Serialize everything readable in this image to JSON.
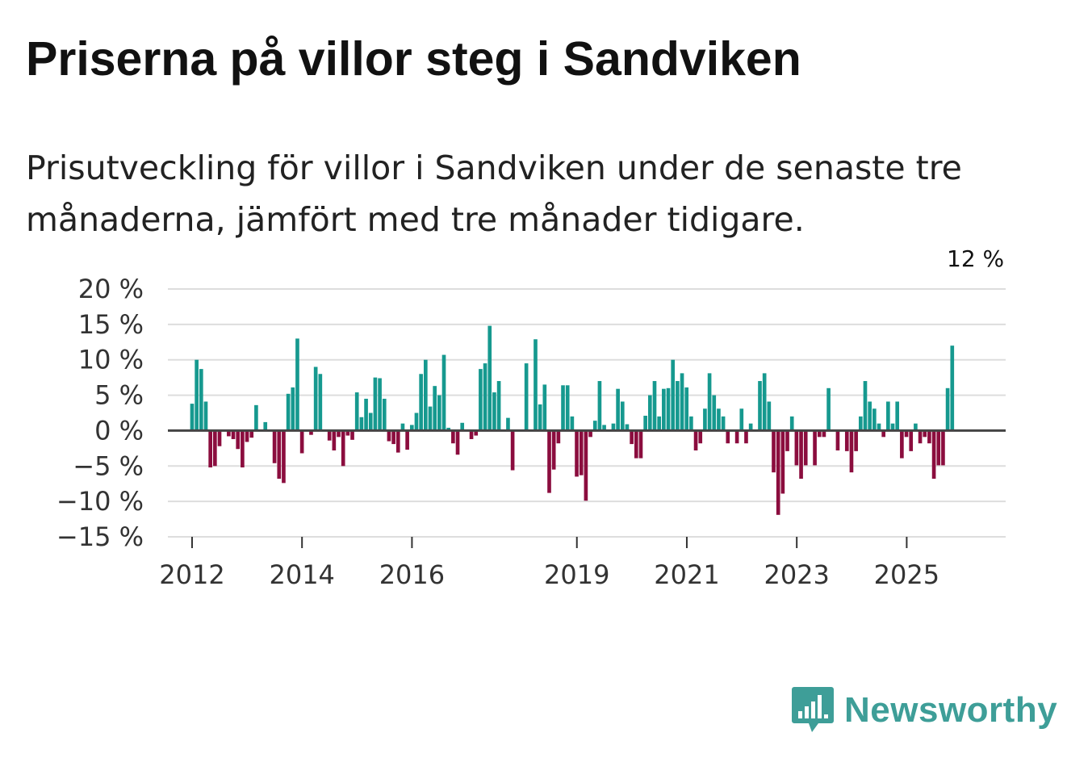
{
  "title": "Priserna på villor steg i Sandviken",
  "subtitle": "Prisutveckling för villor i Sandviken under de senaste tre månaderna, jämfört med tre månader tidigare.",
  "brand": {
    "name": "Newsworthy",
    "color": "#3e9e98",
    "icon": "bar-chart-speech-bubble-icon"
  },
  "colors": {
    "positive": "#16998f",
    "negative": "#8b0d3e",
    "grid": "#dddddd",
    "zero": "#444444"
  },
  "chart_data": {
    "type": "bar",
    "title": "Priserna på villor steg i Sandviken",
    "xlabel": "",
    "ylabel": "",
    "ylim": [
      -15,
      20
    ],
    "yticks": [
      20,
      15,
      10,
      5,
      0,
      -5,
      -10,
      -15
    ],
    "ytick_labels": [
      "20 %",
      "15 %",
      "10 %",
      "5 %",
      "0 %",
      "−5 %",
      "−10 %",
      "−15 %"
    ],
    "xlim": [
      2011.56,
      2026.8
    ],
    "xticks": [
      2012,
      2014,
      2016,
      2019,
      2021,
      2023,
      2025
    ],
    "xtick_labels": [
      "2012",
      "2014",
      "2016",
      "2019",
      "2021",
      "2023",
      "2025"
    ],
    "start": 2012.0,
    "step": 0.0833,
    "annotation": {
      "index": 171,
      "text": "12 %"
    },
    "values": [
      3.8,
      10.0,
      8.7,
      4.1,
      -5.2,
      -5.0,
      -2.2,
      0,
      -0.8,
      -1.2,
      -2.6,
      -5.2,
      -1.6,
      -1.0,
      3.6,
      0,
      1.2,
      0,
      -4.6,
      -6.8,
      -7.4,
      5.2,
      6.1,
      13.0,
      -3.2,
      0,
      -0.6,
      9.0,
      8.0,
      0,
      -1.4,
      -2.8,
      -0.9,
      -5.0,
      -0.7,
      -1.3,
      5.4,
      1.9,
      4.5,
      2.5,
      7.5,
      7.4,
      4.5,
      -1.5,
      -1.9,
      -3.1,
      1.0,
      -2.7,
      0.8,
      2.5,
      8.0,
      10.0,
      3.4,
      6.3,
      5.0,
      10.7,
      0.4,
      -1.8,
      -3.4,
      1.1,
      0,
      -1.2,
      -0.7,
      8.7,
      9.5,
      14.8,
      5.4,
      7.0,
      0,
      1.8,
      -5.6,
      0,
      0,
      9.5,
      0,
      12.9,
      3.7,
      6.5,
      -8.8,
      -5.5,
      -1.8,
      6.4,
      6.4,
      2.0,
      -6.5,
      -6.3,
      -9.9,
      -0.9,
      1.4,
      7.0,
      0.8,
      0,
      1.0,
      5.9,
      4.1,
      0.9,
      -1.9,
      -3.9,
      -3.9,
      2.1,
      5.0,
      7.0,
      2.0,
      5.9,
      6.0,
      10.0,
      7.0,
      8.1,
      6.1,
      2.0,
      -2.8,
      -1.8,
      3.1,
      8.1,
      5.0,
      3.1,
      2.0,
      -1.8,
      0,
      -1.8,
      3.1,
      -1.8,
      1.0,
      0,
      7.0,
      8.1,
      4.1,
      -5.9,
      -11.9,
      -8.9,
      -2.9,
      2.0,
      -4.9,
      -6.8,
      -4.9,
      0,
      -4.9,
      -0.9,
      -0.9,
      6.0,
      0,
      -2.8,
      0,
      -2.9,
      -5.9,
      -2.9,
      2.0,
      7.0,
      4.1,
      3.1,
      1.0,
      -0.9,
      4.1,
      1.0,
      4.1,
      -3.9,
      -0.9,
      -2.9,
      1.0,
      -1.8,
      -0.9,
      -1.8,
      -6.8,
      -4.9,
      -4.9,
      6.0,
      12.0
    ]
  }
}
